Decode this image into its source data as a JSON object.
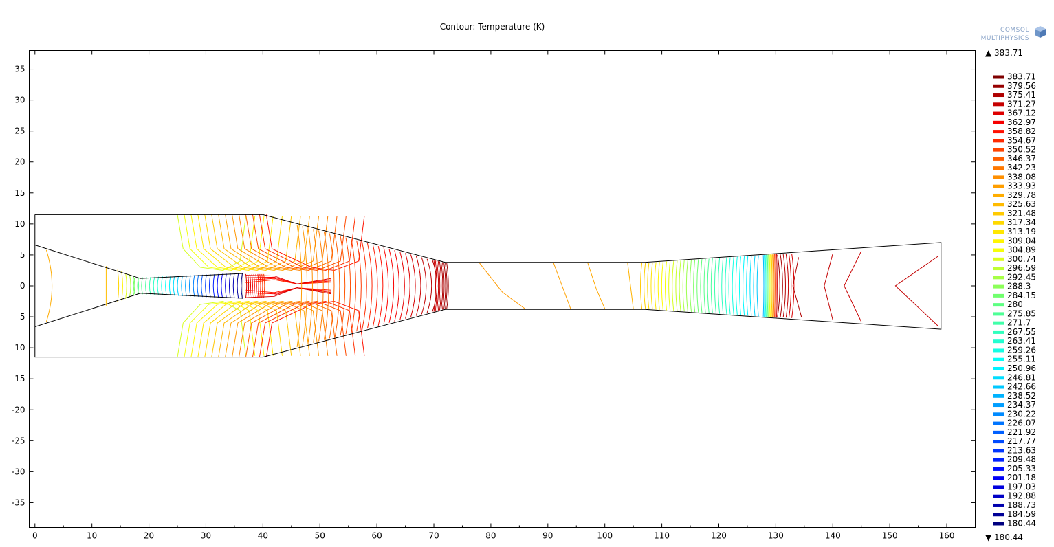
{
  "chart_data": {
    "type": "contour",
    "title": "Contour: Temperature (K)",
    "xlim": [
      -1,
      165
    ],
    "ylim": [
      -39,
      38
    ],
    "x_ticks": [
      0,
      10,
      20,
      30,
      40,
      50,
      60,
      70,
      80,
      90,
      100,
      110,
      120,
      130,
      140,
      150,
      160
    ],
    "y_ticks": [
      35,
      30,
      25,
      20,
      15,
      10,
      5,
      0,
      -5,
      -10,
      -15,
      -20,
      -25,
      -30,
      -35
    ],
    "colorbar": {
      "max_label": "▲ 383.71",
      "min_label": "▼ 180.44",
      "max": 383.71,
      "min": 180.44,
      "levels": [
        383.71,
        379.56,
        375.41,
        371.27,
        367.12,
        362.97,
        358.82,
        354.67,
        350.52,
        346.37,
        342.23,
        338.08,
        333.93,
        329.78,
        325.63,
        321.48,
        317.34,
        313.19,
        309.04,
        304.89,
        300.74,
        296.59,
        292.45,
        288.3,
        284.15,
        280,
        275.85,
        271.7,
        267.55,
        263.41,
        259.26,
        255.11,
        250.96,
        246.81,
        242.66,
        238.52,
        234.37,
        230.22,
        226.07,
        221.92,
        217.77,
        213.63,
        209.48,
        205.33,
        201.18,
        197.03,
        192.88,
        188.73,
        184.59,
        180.44
      ]
    },
    "geometry": {
      "outer_boundary": [
        [
          0,
          11.5
        ],
        [
          40,
          11.5
        ],
        [
          72,
          3.8
        ],
        [
          107,
          3.8
        ],
        [
          159,
          7
        ],
        [
          159,
          -7
        ],
        [
          107,
          -3.8
        ],
        [
          72,
          -3.8
        ],
        [
          40,
          -11.5
        ],
        [
          0,
          -11.5
        ],
        [
          0,
          11.5
        ]
      ],
      "nozzle_upper": [
        [
          0,
          6.6
        ],
        [
          18.5,
          1.2
        ],
        [
          36.5,
          2
        ]
      ],
      "nozzle_lower": [
        [
          0,
          -6.6
        ],
        [
          18.5,
          -1.2
        ],
        [
          36.5,
          -2
        ]
      ],
      "nozzle_exit": [
        [
          36.5,
          2
        ],
        [
          36.5,
          -2
        ]
      ]
    }
  },
  "logo": {
    "line1": "COMSOL",
    "line2": "MULTIPHYSICS"
  }
}
